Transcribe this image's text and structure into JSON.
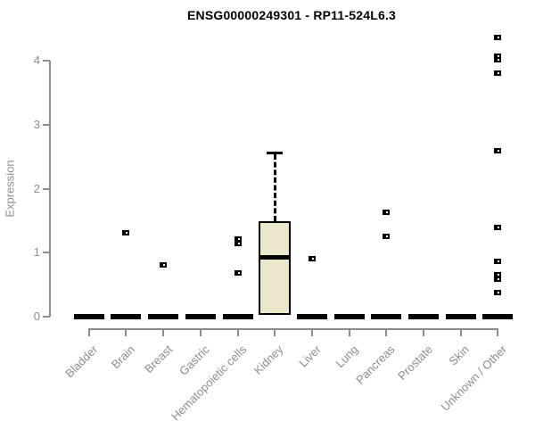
{
  "chart_data": {
    "type": "boxplot",
    "title": "ENSG00000249301 - RP11-524L6.3",
    "xlabel": "",
    "ylabel": "Expression",
    "ylim": [
      0,
      4.4
    ],
    "yticks": [
      0,
      1,
      2,
      3,
      4
    ],
    "grid": false,
    "legend": "none",
    "colors": {
      "box_fill": "#ece7cb",
      "box_border": "#000000",
      "axis": "#8c8c8c",
      "tick_text": "#8c8c8c",
      "title_text": "#000000",
      "outlier": "#000000"
    },
    "categories": [
      {
        "label": "Bladder",
        "box": null,
        "zero_bar": true,
        "outliers": []
      },
      {
        "label": "Brain",
        "box": null,
        "zero_bar": true,
        "outliers": [
          1.31
        ]
      },
      {
        "label": "Breast",
        "box": null,
        "zero_bar": true,
        "outliers": [
          0.81
        ]
      },
      {
        "label": "Gastric",
        "box": null,
        "zero_bar": true,
        "outliers": []
      },
      {
        "label": "Hematopoietic cells",
        "box": null,
        "zero_bar": true,
        "outliers": [
          1.21,
          1.14,
          0.68
        ]
      },
      {
        "label": "Kidney",
        "box": {
          "q1": 0.03,
          "median": 0.92,
          "q3": 1.49,
          "whisker_low": null,
          "whisker_high": 2.56
        },
        "zero_bar": false,
        "outliers": []
      },
      {
        "label": "Liver",
        "box": null,
        "zero_bar": true,
        "outliers": [
          0.91
        ]
      },
      {
        "label": "Lung",
        "box": null,
        "zero_bar": true,
        "outliers": []
      },
      {
        "label": "Pancreas",
        "box": null,
        "zero_bar": true,
        "outliers": [
          1.63,
          1.25
        ]
      },
      {
        "label": "Prostate",
        "box": null,
        "zero_bar": true,
        "outliers": []
      },
      {
        "label": "Skin",
        "box": null,
        "zero_bar": true,
        "outliers": []
      },
      {
        "label": "Unknown / Other",
        "box": null,
        "zero_bar": true,
        "outliers": [
          4.36,
          4.07,
          4.01,
          3.8,
          2.59,
          1.39,
          0.86,
          0.66,
          0.59,
          0.38
        ]
      }
    ]
  }
}
